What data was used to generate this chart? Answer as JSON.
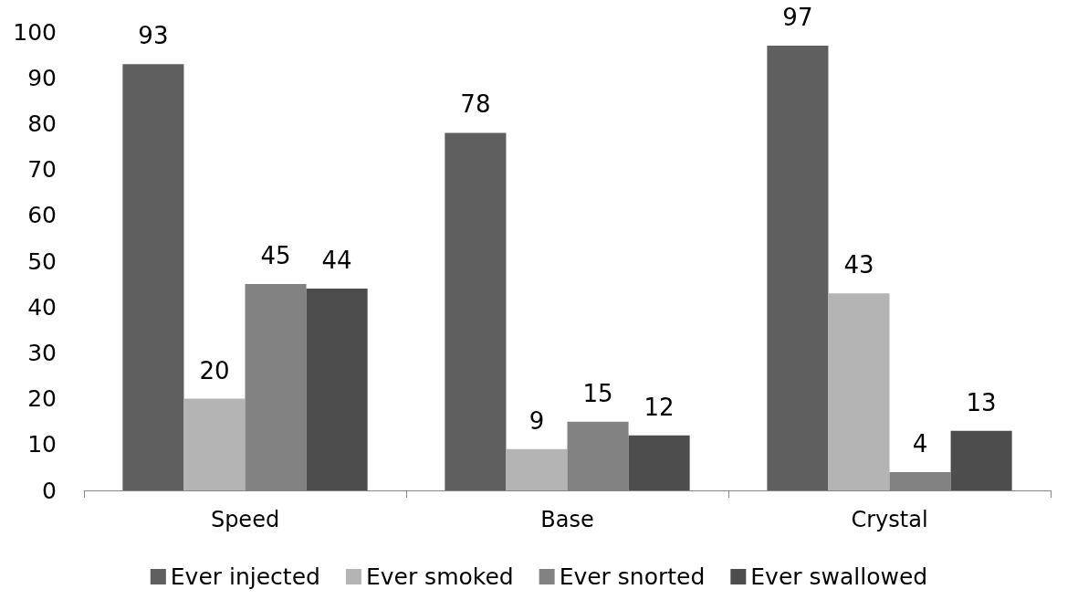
{
  "chart_data": {
    "type": "bar",
    "categories": [
      "Speed",
      "Base",
      "Crystal"
    ],
    "series": [
      {
        "name": "Ever injected",
        "color": "#5f5f5f",
        "values": [
          93,
          78,
          97
        ]
      },
      {
        "name": "Ever smoked",
        "color": "#b4b4b4",
        "values": [
          20,
          9,
          43
        ]
      },
      {
        "name": "Ever snorted",
        "color": "#828282",
        "values": [
          45,
          15,
          4
        ]
      },
      {
        "name": "Ever swallowed",
        "color": "#4d4d4d",
        "values": [
          44,
          12,
          13
        ]
      }
    ],
    "ylim": [
      0,
      100
    ],
    "yticks": [
      0,
      10,
      20,
      30,
      40,
      50,
      60,
      70,
      80,
      90,
      100
    ],
    "grid": false,
    "legend": "bottom",
    "data_labels": true
  }
}
